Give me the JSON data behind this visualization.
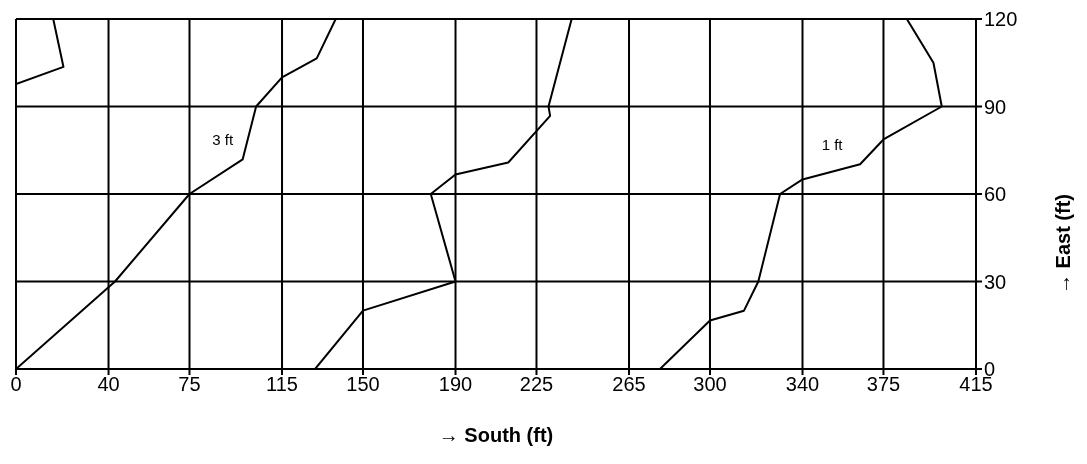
{
  "chart_data": {
    "type": "line",
    "xlabel": "→ South (ft)",
    "ylabel": "→ East (ft)",
    "xlim": [
      0,
      415
    ],
    "ylim": [
      0,
      120
    ],
    "xticks": [
      0,
      40,
      75,
      115,
      150,
      190,
      225,
      265,
      300,
      340,
      375,
      415
    ],
    "yticks": [
      0,
      30,
      60,
      90,
      120
    ],
    "grid": true,
    "legend": false,
    "marker": "none",
    "line_style": "solid",
    "series": [
      {
        "color": "#000000",
        "x": [
          0,
          20.5,
          16.1
        ],
        "values": [
          97.7,
          103.6,
          120
        ]
      },
      {
        "name": "3 ft",
        "color": "#000000",
        "x": [
          0,
          42.8,
          75,
          98,
          103.8,
          115,
          130,
          138.2
        ],
        "values": [
          0,
          30,
          60,
          71.9,
          90,
          100,
          106.5,
          120
        ]
      },
      {
        "color": "#000000",
        "x": [
          129.3,
          150,
          190,
          179.3,
          190,
          212.8,
          230.9,
          230.2,
          240.2
        ],
        "values": [
          0,
          20,
          30,
          60,
          66.7,
          70.8,
          86.8,
          90,
          120
        ]
      },
      {
        "name": "1 ft",
        "color": "#000000",
        "x": [
          278.4,
          300,
          314.7,
          320.9,
          330.3,
          340,
          364.9,
          375,
          400.2,
          396.6,
          385.1
        ],
        "values": [
          0,
          16.6,
          20,
          30,
          60,
          65,
          70.2,
          78.7,
          90,
          105,
          120
        ]
      }
    ]
  }
}
